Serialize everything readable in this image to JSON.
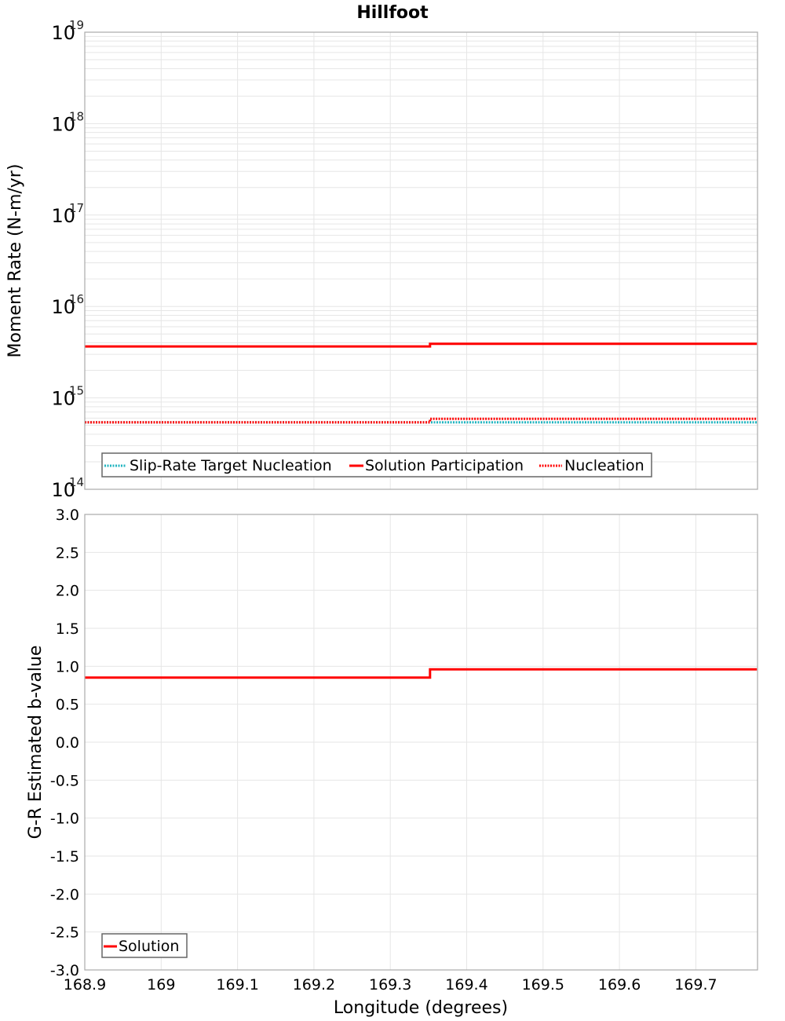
{
  "title": "Hillfoot",
  "colors": {
    "solution": "#ff0000",
    "nucleation": "#ff0000",
    "target": "#22b5c0",
    "grid": "#e6e6e6",
    "frame": "#aaaaaa"
  },
  "top_plot": {
    "ylabel": "Moment Rate (N-m/yr)",
    "yticks": [
      {
        "base": "10",
        "exp": "19"
      },
      {
        "base": "10",
        "exp": "18"
      },
      {
        "base": "10",
        "exp": "17"
      },
      {
        "base": "10",
        "exp": "16"
      },
      {
        "base": "10",
        "exp": "15"
      },
      {
        "base": "10",
        "exp": "14"
      }
    ],
    "legend": [
      {
        "label": "Slip-Rate Target Nucleation",
        "style": "dotted",
        "color": "#22b5c0"
      },
      {
        "label": "Solution Participation",
        "style": "solid",
        "color": "#ff0000"
      },
      {
        "label": "Nucleation",
        "style": "dotted",
        "color": "#ff0000"
      }
    ]
  },
  "bottom_plot": {
    "ylabel": "G-R Estimated b-value",
    "yticks": [
      "3.0",
      "2.5",
      "2.0",
      "1.5",
      "1.0",
      "0.5",
      "0.0",
      "-0.5",
      "-1.0",
      "-1.5",
      "-2.0",
      "-2.5",
      "-3.0"
    ],
    "legend": [
      {
        "label": "Solution",
        "style": "solid",
        "color": "#ff0000"
      }
    ]
  },
  "xaxis": {
    "label": "Longitude (degrees)",
    "ticks": [
      "168.9",
      "169",
      "169.1",
      "169.2",
      "169.3",
      "169.4",
      "169.5",
      "169.6",
      "169.7"
    ]
  },
  "chart_data": [
    {
      "type": "line",
      "title": "Hillfoot",
      "xlabel": "Longitude (degrees)",
      "ylabel": "Moment Rate (N-m/yr)",
      "yscale": "log",
      "xlim": [
        168.9,
        169.78
      ],
      "ylim": [
        100000000000000.0,
        1e+19
      ],
      "grid": true,
      "legend_position": "lower-left",
      "x": [
        168.9,
        169.352,
        169.352,
        169.78
      ],
      "series": [
        {
          "name": "Slip-Rate Target Nucleation",
          "style": "dotted",
          "color": "#22b5c0",
          "values": [
            540000000000000.0,
            540000000000000.0,
            540000000000000.0,
            540000000000000.0
          ]
        },
        {
          "name": "Solution Participation",
          "style": "solid",
          "color": "#ff0000",
          "values": [
            3650000000000000.0,
            3650000000000000.0,
            3900000000000000.0,
            3900000000000000.0
          ]
        },
        {
          "name": "Nucleation",
          "style": "dotted",
          "color": "#ff0000",
          "values": [
            540000000000000.0,
            540000000000000.0,
            590000000000000.0,
            590000000000000.0
          ]
        }
      ]
    },
    {
      "type": "line",
      "xlabel": "Longitude (degrees)",
      "ylabel": "G-R Estimated b-value",
      "xlim": [
        168.9,
        169.78
      ],
      "ylim": [
        -3.0,
        3.0
      ],
      "grid": true,
      "legend_position": "lower-left",
      "x": [
        168.9,
        169.352,
        169.352,
        169.78
      ],
      "series": [
        {
          "name": "Solution",
          "style": "solid",
          "color": "#ff0000",
          "values": [
            0.85,
            0.85,
            0.96,
            0.96
          ]
        }
      ]
    }
  ]
}
